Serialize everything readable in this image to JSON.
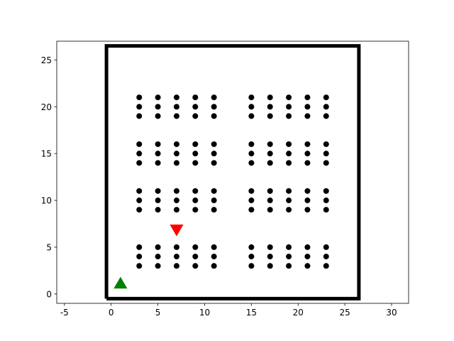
{
  "chart_data": {
    "type": "scatter",
    "xlim": [
      -5.82,
      31.82
    ],
    "ylim": [
      -1,
      27
    ],
    "xticks": [
      -5,
      0,
      5,
      10,
      15,
      20,
      25,
      30
    ],
    "yticks": [
      0,
      5,
      10,
      15,
      20,
      25
    ],
    "series": [
      {
        "color": "#000000",
        "marker": "circle",
        "x": [
          3,
          3,
          3,
          3,
          3,
          3,
          3,
          3,
          3,
          3,
          3,
          3,
          5,
          5,
          5,
          5,
          5,
          5,
          5,
          5,
          5,
          5,
          5,
          5,
          7,
          7,
          7,
          7,
          7,
          7,
          7,
          7,
          7,
          7,
          7,
          7,
          9,
          9,
          9,
          9,
          9,
          9,
          9,
          9,
          9,
          9,
          9,
          9,
          11,
          11,
          11,
          11,
          11,
          11,
          11,
          11,
          11,
          11,
          11,
          11,
          15,
          15,
          15,
          15,
          15,
          15,
          15,
          15,
          15,
          15,
          15,
          15,
          17,
          17,
          17,
          17,
          17,
          17,
          17,
          17,
          17,
          17,
          17,
          17,
          19,
          19,
          19,
          19,
          19,
          19,
          19,
          19,
          19,
          19,
          19,
          19,
          21,
          21,
          21,
          21,
          21,
          21,
          21,
          21,
          21,
          21,
          21,
          21,
          23,
          23,
          23,
          23,
          23,
          23,
          23,
          23,
          23,
          23,
          23,
          23
        ],
        "values": [
          3,
          4,
          5,
          9,
          10,
          11,
          14,
          15,
          16,
          19,
          20,
          21,
          3,
          4,
          5,
          9,
          10,
          11,
          14,
          15,
          16,
          19,
          20,
          21,
          3,
          4,
          5,
          9,
          10,
          11,
          14,
          15,
          16,
          19,
          20,
          21,
          3,
          4,
          5,
          9,
          10,
          11,
          14,
          15,
          16,
          19,
          20,
          21,
          3,
          4,
          5,
          9,
          10,
          11,
          14,
          15,
          16,
          19,
          20,
          21,
          3,
          4,
          5,
          9,
          10,
          11,
          14,
          15,
          16,
          19,
          20,
          21,
          3,
          4,
          5,
          9,
          10,
          11,
          14,
          15,
          16,
          19,
          20,
          21,
          3,
          4,
          5,
          9,
          10,
          11,
          14,
          15,
          16,
          19,
          20,
          21,
          3,
          4,
          5,
          9,
          10,
          11,
          14,
          15,
          16,
          19,
          20,
          21,
          3,
          4,
          5,
          9,
          10,
          11,
          14,
          15,
          16,
          19,
          20,
          21
        ]
      },
      {
        "color": "#000000",
        "marker": "line",
        "x": [
          -0.5,
          26.5,
          26.5,
          -0.5,
          -0.5
        ],
        "values": [
          -0.5,
          -0.5,
          26.5,
          26.5,
          -0.5
        ]
      },
      {
        "color": "#ff0000",
        "marker": "triangle-down",
        "x": [
          7
        ],
        "values": [
          7
        ]
      },
      {
        "color": "#008000",
        "marker": "triangle-up",
        "x": [
          1
        ],
        "values": [
          1
        ]
      }
    ]
  }
}
